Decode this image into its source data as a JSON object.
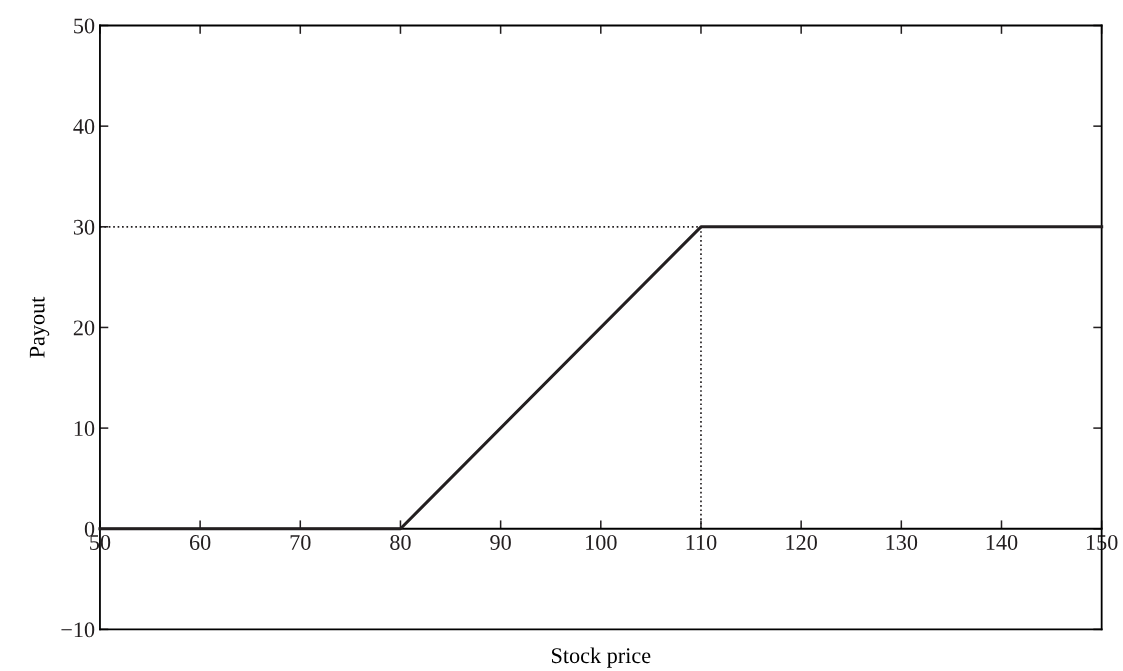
{
  "chart_data": {
    "type": "line",
    "xlabel": "Stock price",
    "ylabel": "Payout",
    "x": [
      50,
      80,
      110,
      150
    ],
    "series": [
      {
        "color": "#231f20",
        "values": [
          0,
          0,
          30,
          30
        ],
        "line_style": "solid"
      }
    ],
    "ref_lines": [
      {
        "axis": "y",
        "value": 30,
        "color": "#231f20",
        "line_style": "dotted"
      },
      {
        "axis": "x",
        "value": 110,
        "color": "#231f20",
        "line_style": "dotted"
      }
    ],
    "xlim": [
      50,
      150
    ],
    "xticks": [
      50,
      60,
      70,
      80,
      90,
      100,
      110,
      120,
      130,
      140,
      150
    ],
    "ylim": [
      -10,
      50
    ],
    "yticks": [
      {
        "value": -10,
        "label": "−10"
      },
      0,
      10,
      20,
      30,
      40,
      50
    ],
    "grid": false,
    "marker": "none"
  }
}
